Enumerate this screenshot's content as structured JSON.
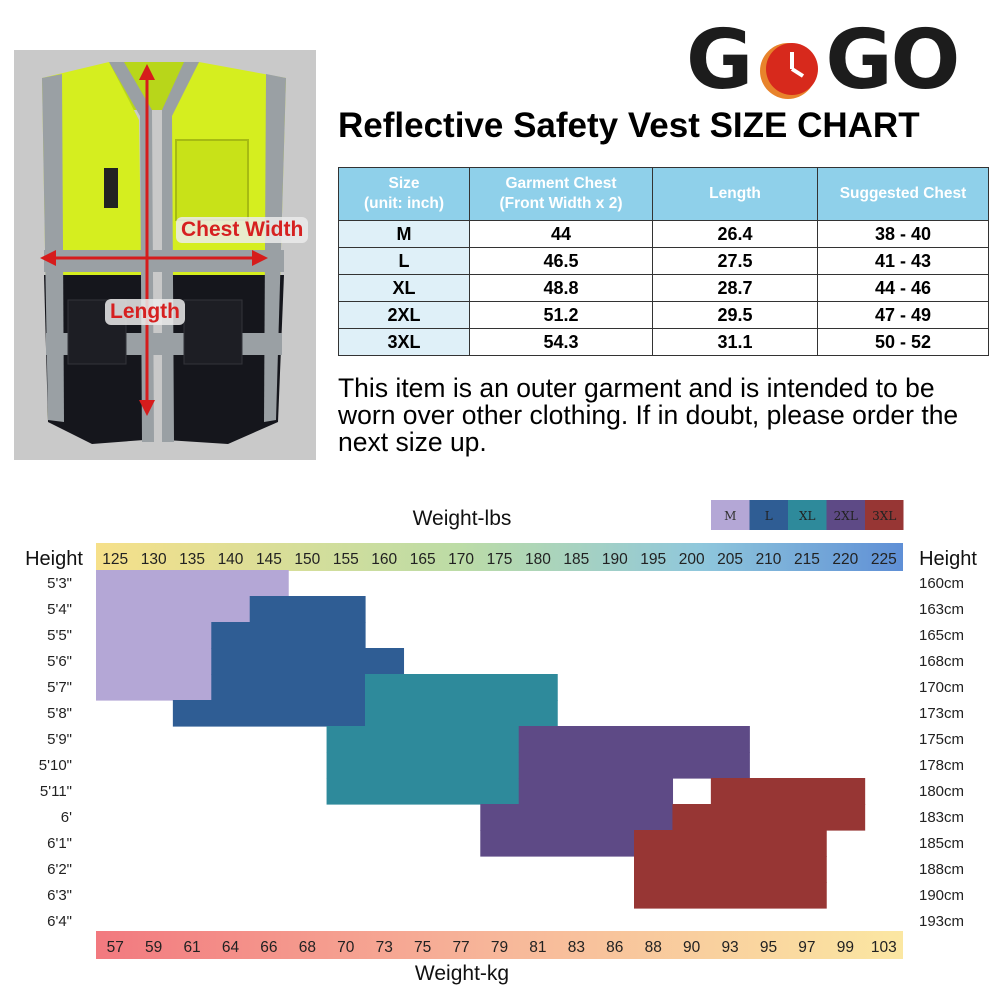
{
  "brand": {
    "logo_letters": [
      "G",
      "G",
      "O"
    ]
  },
  "vest_image": {
    "chest_label": "Chest Width",
    "length_label": "Length"
  },
  "title": "Reflective Safety Vest SIZE CHART",
  "size_table": {
    "headers": [
      {
        "line1": "Size",
        "line2": "(unit: inch)"
      },
      {
        "line1": "Garment Chest",
        "line2": "(Front Width x 2)"
      },
      {
        "line1": "Length",
        "line2": ""
      },
      {
        "line1": "Suggested Chest",
        "line2": ""
      }
    ],
    "rows": [
      {
        "size": "M",
        "chest": "44",
        "length": "26.4",
        "suggested": "38 - 40"
      },
      {
        "size": "L",
        "chest": "46.5",
        "length": "27.5",
        "suggested": "41 - 43"
      },
      {
        "size": "XL",
        "chest": "48.8",
        "length": "28.7",
        "suggested": "44 - 46"
      },
      {
        "size": "2XL",
        "chest": "51.2",
        "length": "29.5",
        "suggested": "47 - 49"
      },
      {
        "size": "3XL",
        "chest": "54.3",
        "length": "31.1",
        "suggested": "50 - 52"
      }
    ]
  },
  "note": "This item is an outer garment and is intended to be worn over other clothing. If in doubt, please order the next size up.",
  "chart_data": {
    "type": "heatmap",
    "title_top": "Weight-lbs",
    "title_bottom": "Weight-kg",
    "left_axis_title": "Height",
    "right_axis_title": "Height",
    "weights_lbs": [
      "125",
      "130",
      "135",
      "140",
      "145",
      "150",
      "155",
      "160",
      "165",
      "170",
      "175",
      "180",
      "185",
      "190",
      "195",
      "200",
      "205",
      "210",
      "215",
      "220",
      "225"
    ],
    "weights_kg": [
      "57",
      "59",
      "61",
      "64",
      "66",
      "68",
      "70",
      "73",
      "75",
      "77",
      "79",
      "81",
      "83",
      "86",
      "88",
      "90",
      "93",
      "95",
      "97",
      "99",
      "103"
    ],
    "heights_ft": [
      "5'3\"",
      "5'4\"",
      "5'5\"",
      "5'6\"",
      "5'7\"",
      "5'8\"",
      "5'9\"",
      "5'10\"",
      "5'11\"",
      "6'",
      "6'1\"",
      "6'2\"",
      "6'3\"",
      "6'4\""
    ],
    "heights_cm": [
      "160cm",
      "163cm",
      "165cm",
      "168cm",
      "170cm",
      "173cm",
      "175cm",
      "178cm",
      "180cm",
      "183cm",
      "185cm",
      "188cm",
      "190cm",
      "193cm"
    ],
    "legend": [
      {
        "size": "M",
        "color": "#b4a7d6"
      },
      {
        "size": "L",
        "color": "#2f5d94"
      },
      {
        "size": "XL",
        "color": "#2e8a9b"
      },
      {
        "size": "2XL",
        "color": "#5e4a86"
      },
      {
        "size": "3XL",
        "color": "#973634"
      }
    ],
    "regions": [
      {
        "size": "M",
        "rows": [
          {
            "h": "5'3\"",
            "from": "125",
            "to": "150"
          },
          {
            "h": "5'4\"",
            "from": "125",
            "to": "145"
          },
          {
            "h": "5'5\"",
            "from": "125",
            "to": "140"
          },
          {
            "h": "5'6\"",
            "from": "125",
            "to": "140"
          },
          {
            "h": "5'7\"",
            "from": "125",
            "to": "140"
          }
        ]
      },
      {
        "size": "L",
        "rows": [
          {
            "h": "5'4\"",
            "from": "145",
            "to": "160"
          },
          {
            "h": "5'5\"",
            "from": "140",
            "to": "160"
          },
          {
            "h": "5'6\"",
            "from": "140",
            "to": "165"
          },
          {
            "h": "5'7\"",
            "from": "140",
            "to": "160"
          },
          {
            "h": "5'8\"",
            "from": "135",
            "to": "160"
          }
        ]
      },
      {
        "size": "XL",
        "rows": [
          {
            "h": "5'7\"",
            "from": "160",
            "to": "185"
          },
          {
            "h": "5'8\"",
            "from": "160",
            "to": "185"
          },
          {
            "h": "5'9\"",
            "from": "155",
            "to": "180"
          },
          {
            "h": "5'10\"",
            "from": "155",
            "to": "180"
          },
          {
            "h": "5'11\"",
            "from": "155",
            "to": "180"
          }
        ]
      },
      {
        "size": "2XL",
        "rows": [
          {
            "h": "5'9\"",
            "from": "180",
            "to": "210"
          },
          {
            "h": "5'10\"",
            "from": "180",
            "to": "210"
          },
          {
            "h": "5'11\"",
            "from": "180",
            "to": "200"
          },
          {
            "h": "6'",
            "from": "175",
            "to": "200"
          },
          {
            "h": "6'1\"",
            "from": "175",
            "to": "195"
          }
        ]
      },
      {
        "size": "3XL",
        "rows": [
          {
            "h": "5'11\"",
            "from": "205",
            "to": "225"
          },
          {
            "h": "6'",
            "from": "200",
            "to": "225"
          },
          {
            "h": "6'1\"",
            "from": "195",
            "to": "220"
          },
          {
            "h": "6'2\"",
            "from": "195",
            "to": "220"
          },
          {
            "h": "6'3\"",
            "from": "195",
            "to": "220"
          }
        ]
      }
    ]
  }
}
